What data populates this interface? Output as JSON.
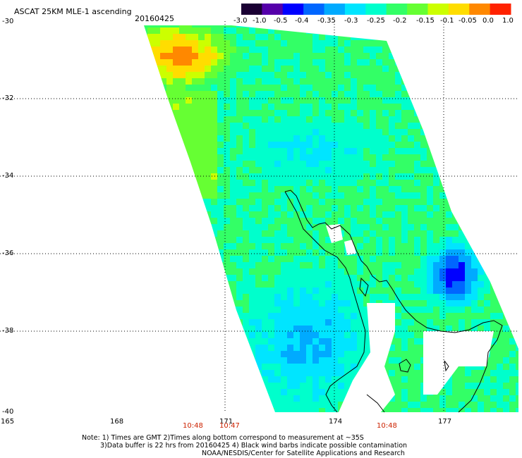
{
  "header": {
    "title": "ASCAT 25KM MLE-1 ascending",
    "date": "20160425"
  },
  "colorbar": {
    "labels": [
      "-3.0",
      "-1.0",
      "-0.5",
      "-0.4",
      "-0.35",
      "-0.3",
      "-0.25",
      "-0.2",
      "-0.15",
      "-0.1",
      "-0.05",
      "0.0",
      "1.0"
    ],
    "colors": [
      "#1a0033",
      "#5500aa",
      "#0000ff",
      "#0066ff",
      "#00aaff",
      "#00e5ff",
      "#00ffcc",
      "#33ff66",
      "#66ff33",
      "#ccff00",
      "#ffdd00",
      "#ff8800",
      "#ff2200"
    ]
  },
  "axes": {
    "lat_labels": [
      "-30",
      "-32",
      "-34",
      "-36",
      "-38",
      "-40"
    ],
    "lon_labels": [
      "165",
      "168",
      "171",
      "174",
      "177"
    ],
    "lat_range": [
      -40,
      -30
    ],
    "lon_range": [
      165,
      179
    ]
  },
  "pass_times": [
    "10:48",
    "10:47",
    "10:48"
  ],
  "notes": [
    "Note: 1) Times are GMT 2)Times along bottom correspond to measurement at ~35S",
    "3)Data buffer is 22 hrs from 20160425 4) Black wind barbs indicate possible contamination",
    "NOAA/NESDIS/Center for Satellite Applications and Research"
  ],
  "colors": {
    "land": "#ffffff",
    "coastline": "#000000",
    "grid": "#000000",
    "time_labels": "#cc2200"
  }
}
